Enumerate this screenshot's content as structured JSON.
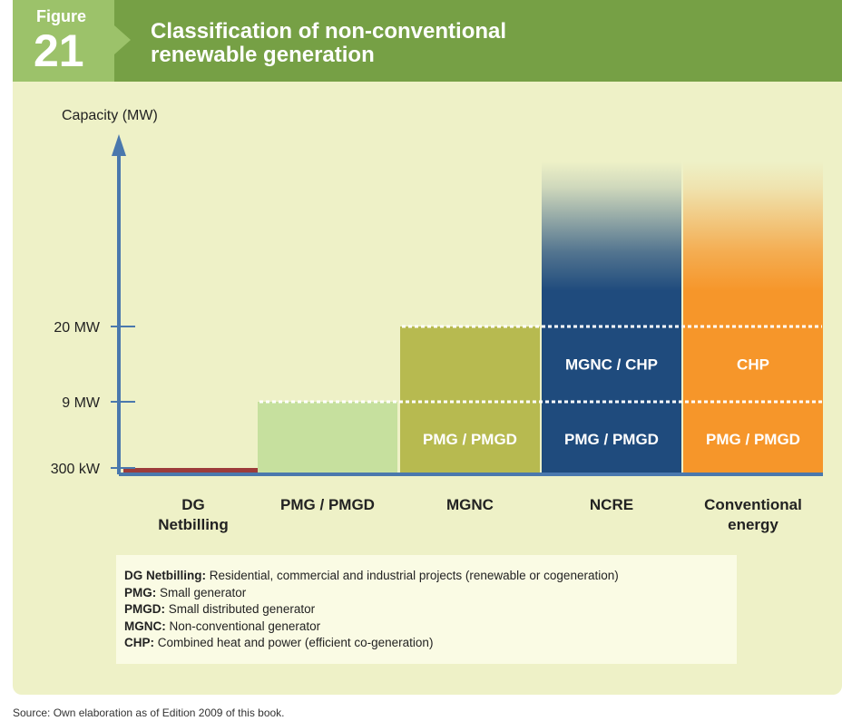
{
  "figure": {
    "label": "Figure",
    "number": "21"
  },
  "title_lines": [
    "Classification of non-conventional",
    "renewable generation"
  ],
  "colors": {
    "header_green": "#76a045",
    "header_light_green": "#9cc26a",
    "panel_bg": "#eef1c7",
    "axis": "#4a78ad",
    "dg": "#9c3b3a",
    "pmg": "#c6e09e",
    "mgnc": "#b7ba50",
    "ncre": "#1f4b7d",
    "conventional": "#f6962a"
  },
  "chart_data": {
    "type": "bar",
    "ylabel": "Capacity (MW)",
    "yticks": [
      {
        "label": "300 kW",
        "value": 0.3
      },
      {
        "label": "9 MW",
        "value": 9
      },
      {
        "label": "20 MW",
        "value": 20
      }
    ],
    "scale": "categorical thresholds",
    "dotted_lines_at": [
      9,
      20
    ],
    "categories": [
      "DG\nNetbilling",
      "PMG / PMGD",
      "MGNC",
      "NCRE",
      "Conventional\nenergy"
    ],
    "bars": [
      {
        "category": "DG Netbilling",
        "upper_limit": 0.3,
        "open_ended": false,
        "color": "#9c3b3a",
        "segments": []
      },
      {
        "category": "PMG / PMGD",
        "upper_limit": 9,
        "open_ended": false,
        "color": "#c6e09e",
        "segments": []
      },
      {
        "category": "MGNC",
        "upper_limit": 20,
        "open_ended": false,
        "color": "#b7ba50",
        "segments": [
          {
            "label": "PMG / PMGD",
            "from": 0.3,
            "to": 9
          }
        ]
      },
      {
        "category": "NCRE",
        "upper_limit": null,
        "open_ended": true,
        "color": "#1f4b7d",
        "segments": [
          {
            "label": "PMG / PMGD",
            "from": 0.3,
            "to": 9
          },
          {
            "label": "MGNC / CHP",
            "from": 9,
            "to": 20
          }
        ]
      },
      {
        "category": "Conventional energy",
        "upper_limit": null,
        "open_ended": true,
        "color": "#f6962a",
        "segments": [
          {
            "label": "PMG / PMGD",
            "from": 0.3,
            "to": 9
          },
          {
            "label": "CHP",
            "from": 9,
            "to": 20
          }
        ]
      }
    ]
  },
  "legend": [
    {
      "term": "DG Netbilling:",
      "definition": " Residential, commercial and industrial projects (renewable or cogeneration)"
    },
    {
      "term": "PMG:",
      "definition": " Small generator"
    },
    {
      "term": "PMGD:",
      "definition": " Small distributed generator"
    },
    {
      "term": "MGNC:",
      "definition": " Non-conventional generator"
    },
    {
      "term": "CHP:",
      "definition": "  Combined heat and power (efficient co-generation)"
    }
  ],
  "source": "Source: Own elaboration as of Edition 2009 of this book."
}
